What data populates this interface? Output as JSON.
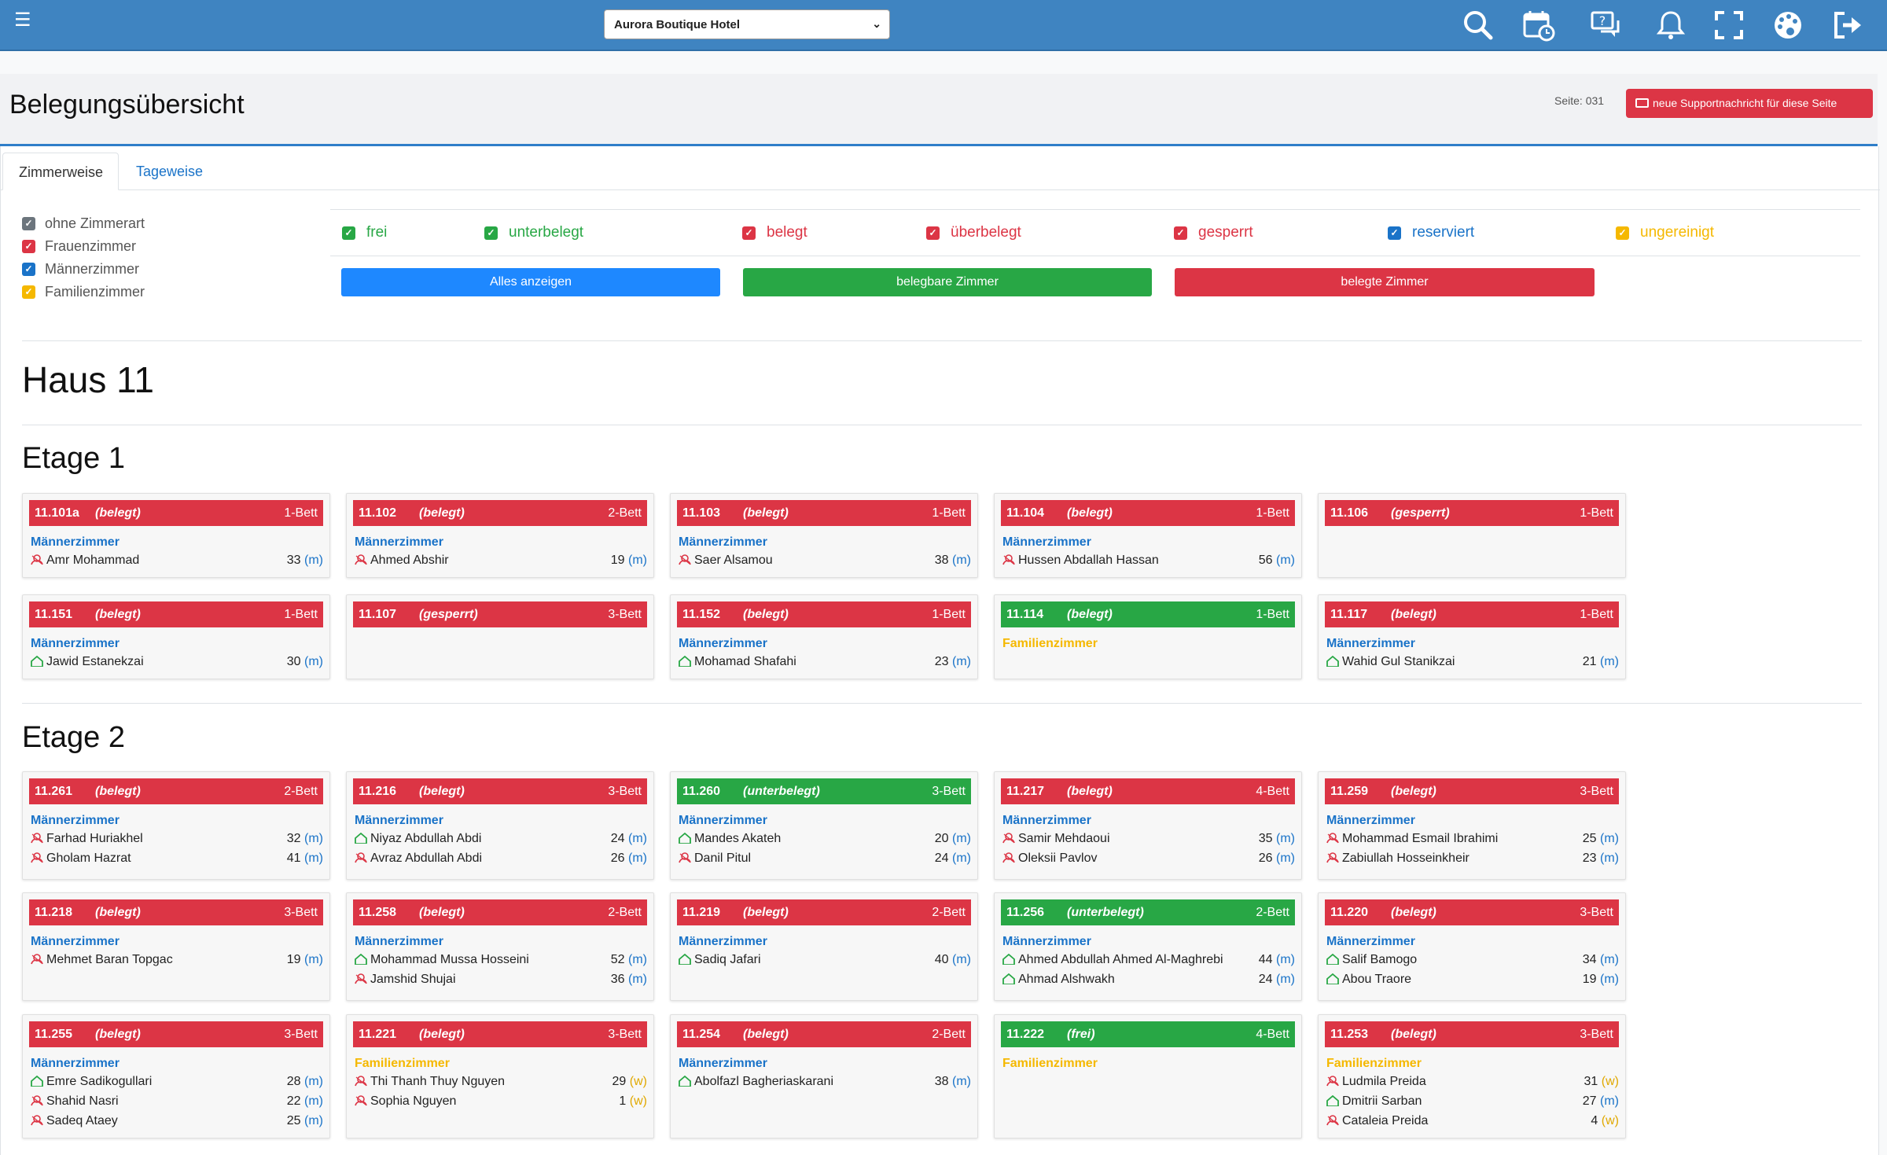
{
  "hotel": "Aurora Boutique Hotel",
  "title": "Belegungsübersicht",
  "seite": "Seite: 031",
  "support_label": "neue Supportnachricht für diese Seite",
  "tabs": [
    "Zimmerweise",
    "Tageweise"
  ],
  "room_types": [
    {
      "label": "ohne Zimmerart",
      "color": "#6c757d"
    },
    {
      "label": "Frauenzimmer",
      "color": "#dc3545"
    },
    {
      "label": "Männerzimmer",
      "color": "#1a73c8"
    },
    {
      "label": "Familienzimmer",
      "color": "#f5b800"
    }
  ],
  "filters": [
    {
      "label": "frei",
      "color": "#28a745"
    },
    {
      "label": "unterbelegt",
      "color": "#28a745"
    },
    {
      "label": "belegt",
      "color": "#dc3545"
    },
    {
      "label": "überbelegt",
      "color": "#dc3545"
    },
    {
      "label": "gesperrt",
      "color": "#dc3545"
    },
    {
      "label": "reserviert",
      "color": "#1a73c8"
    },
    {
      "label": "ungereinigt",
      "color": "#f5b800"
    }
  ],
  "buttons": {
    "all": "Alles anzeigen",
    "bookable": "belegbare Zimmer",
    "occupied": "belegte Zimmer"
  },
  "haus": "Haus 11",
  "etage1": "Etage 1",
  "etage2": "Etage 2",
  "colors": {
    "red": "#dc3545",
    "green": "#28a745",
    "blue": "#1a73c8",
    "yellow": "#f5b800",
    "topbar": "#3f84c1"
  },
  "cards": [
    {
      "num": "11.101a",
      "status": "(belegt)",
      "bed": "1-Bett",
      "head": "red",
      "type": "Männerzimmer",
      "tcolor": "#1a73c8",
      "occ": [
        {
          "name": "Amr Mohammad",
          "age": "33",
          "g": "m",
          "icon": "person"
        }
      ]
    },
    {
      "num": "11.102",
      "status": "(belegt)",
      "bed": "2-Bett",
      "head": "red",
      "type": "Männerzimmer",
      "tcolor": "#1a73c8",
      "occ": [
        {
          "name": "Ahmed Abshir",
          "age": "19",
          "g": "m",
          "icon": "person"
        }
      ]
    },
    {
      "num": "11.103",
      "status": "(belegt)",
      "bed": "1-Bett",
      "head": "red",
      "type": "Männerzimmer",
      "tcolor": "#1a73c8",
      "occ": [
        {
          "name": "Saer Alsamou",
          "age": "38",
          "g": "m",
          "icon": "person"
        }
      ]
    },
    {
      "num": "11.104",
      "status": "(belegt)",
      "bed": "1-Bett",
      "head": "red",
      "type": "Männerzimmer",
      "tcolor": "#1a73c8",
      "occ": [
        {
          "name": "Hussen Abdallah Hassan",
          "age": "56",
          "g": "m",
          "icon": "person"
        }
      ]
    },
    {
      "num": "11.106",
      "status": "(gesperrt)",
      "bed": "1-Bett",
      "head": "red",
      "type": "",
      "tcolor": "#1a73c8",
      "occ": []
    },
    {
      "num": "11.151",
      "status": "(belegt)",
      "bed": "1-Bett",
      "head": "red",
      "type": "Männerzimmer",
      "tcolor": "#1a73c8",
      "occ": [
        {
          "name": "Jawid Estanekzai",
          "age": "30",
          "g": "m",
          "icon": "house"
        }
      ]
    },
    {
      "num": "11.107",
      "status": "(gesperrt)",
      "bed": "3-Bett",
      "head": "red",
      "type": "",
      "tcolor": "#1a73c8",
      "occ": []
    },
    {
      "num": "11.152",
      "status": "(belegt)",
      "bed": "1-Bett",
      "head": "red",
      "type": "Männerzimmer",
      "tcolor": "#1a73c8",
      "occ": [
        {
          "name": "Mohamad Shafahi",
          "age": "23",
          "g": "m",
          "icon": "house"
        }
      ]
    },
    {
      "num": "11.114",
      "status": "(belegt)",
      "bed": "1-Bett",
      "head": "green",
      "type": "Familienzimmer",
      "tcolor": "#f5b800",
      "occ": []
    },
    {
      "num": "11.117",
      "status": "(belegt)",
      "bed": "1-Bett",
      "head": "red",
      "type": "Männerzimmer",
      "tcolor": "#1a73c8",
      "occ": [
        {
          "name": "Wahid Gul Stanikzai",
          "age": "21",
          "g": "m",
          "icon": "house"
        }
      ]
    },
    {
      "num": "11.261",
      "status": "(belegt)",
      "bed": "2-Bett",
      "head": "red",
      "type": "Männerzimmer",
      "tcolor": "#1a73c8",
      "occ": [
        {
          "name": "Farhad Huriakhel",
          "age": "32",
          "g": "m",
          "icon": "person"
        },
        {
          "name": "Gholam Hazrat",
          "age": "41",
          "g": "m",
          "icon": "person"
        }
      ]
    },
    {
      "num": "11.216",
      "status": "(belegt)",
      "bed": "3-Bett",
      "head": "red",
      "type": "Männerzimmer",
      "tcolor": "#1a73c8",
      "occ": [
        {
          "name": "Niyaz Abdullah Abdi",
          "age": "24",
          "g": "m",
          "icon": "house"
        },
        {
          "name": "Avraz Abdullah Abdi",
          "age": "26",
          "g": "m",
          "icon": "person"
        }
      ]
    },
    {
      "num": "11.260",
      "status": "(unterbelegt)",
      "bed": "3-Bett",
      "head": "green",
      "type": "Männerzimmer",
      "tcolor": "#1a73c8",
      "occ": [
        {
          "name": "Mandes Akateh",
          "age": "20",
          "g": "m",
          "icon": "house"
        },
        {
          "name": "Danil Pitul",
          "age": "24",
          "g": "m",
          "icon": "person"
        }
      ]
    },
    {
      "num": "11.217",
      "status": "(belegt)",
      "bed": "4-Bett",
      "head": "red",
      "type": "Männerzimmer",
      "tcolor": "#1a73c8",
      "occ": [
        {
          "name": "Samir Mehdaoui",
          "age": "35",
          "g": "m",
          "icon": "person"
        },
        {
          "name": "Oleksii Pavlov",
          "age": "26",
          "g": "m",
          "icon": "person"
        }
      ]
    },
    {
      "num": "11.259",
      "status": "(belegt)",
      "bed": "3-Bett",
      "head": "red",
      "type": "Männerzimmer",
      "tcolor": "#1a73c8",
      "occ": [
        {
          "name": "Mohammad Esmail Ibrahimi",
          "age": "25",
          "g": "m",
          "icon": "person"
        },
        {
          "name": "Zabiullah Hosseinkheir",
          "age": "23",
          "g": "m",
          "icon": "person"
        }
      ]
    },
    {
      "num": "11.218",
      "status": "(belegt)",
      "bed": "3-Bett",
      "head": "red",
      "type": "Männerzimmer",
      "tcolor": "#1a73c8",
      "occ": [
        {
          "name": "Mehmet Baran Topgac",
          "age": "19",
          "g": "m",
          "icon": "person"
        }
      ]
    },
    {
      "num": "11.258",
      "status": "(belegt)",
      "bed": "2-Bett",
      "head": "red",
      "type": "Männerzimmer",
      "tcolor": "#1a73c8",
      "occ": [
        {
          "name": "Mohammad Mussa Hosseini",
          "age": "52",
          "g": "m",
          "icon": "house"
        },
        {
          "name": "Jamshid Shujai",
          "age": "36",
          "g": "m",
          "icon": "person"
        }
      ]
    },
    {
      "num": "11.219",
      "status": "(belegt)",
      "bed": "2-Bett",
      "head": "red",
      "type": "Männerzimmer",
      "tcolor": "#1a73c8",
      "occ": [
        {
          "name": "Sadiq Jafari",
          "age": "40",
          "g": "m",
          "icon": "house"
        }
      ]
    },
    {
      "num": "11.256",
      "status": "(unterbelegt)",
      "bed": "2-Bett",
      "head": "green",
      "type": "Männerzimmer",
      "tcolor": "#1a73c8",
      "occ": [
        {
          "name": "Ahmed Abdullah Ahmed Al-Maghrebi",
          "age": "44",
          "g": "m",
          "icon": "house"
        },
        {
          "name": "Ahmad Alshwakh",
          "age": "24",
          "g": "m",
          "icon": "house"
        }
      ]
    },
    {
      "num": "11.220",
      "status": "(belegt)",
      "bed": "3-Bett",
      "head": "red",
      "type": "Männerzimmer",
      "tcolor": "#1a73c8",
      "occ": [
        {
          "name": "Salif Bamogo",
          "age": "34",
          "g": "m",
          "icon": "house"
        },
        {
          "name": "Abou Traore",
          "age": "19",
          "g": "m",
          "icon": "house"
        }
      ]
    },
    {
      "num": "11.255",
      "status": "(belegt)",
      "bed": "3-Bett",
      "head": "red",
      "type": "Männerzimmer",
      "tcolor": "#1a73c8",
      "occ": [
        {
          "name": "Emre Sadikogullari",
          "age": "28",
          "g": "m",
          "icon": "house"
        },
        {
          "name": "Shahid Nasri",
          "age": "22",
          "g": "m",
          "icon": "person"
        },
        {
          "name": "Sadeq Ataey",
          "age": "25",
          "g": "m",
          "icon": "person"
        }
      ]
    },
    {
      "num": "11.221",
      "status": "(belegt)",
      "bed": "3-Bett",
      "head": "red",
      "type": "Familienzimmer",
      "tcolor": "#f5b800",
      "occ": [
        {
          "name": "Thi Thanh Thuy Nguyen",
          "age": "29",
          "g": "w",
          "icon": "person"
        },
        {
          "name": "Sophia Nguyen",
          "age": "1",
          "g": "w",
          "icon": "person"
        }
      ]
    },
    {
      "num": "11.254",
      "status": "(belegt)",
      "bed": "2-Bett",
      "head": "red",
      "type": "Männerzimmer",
      "tcolor": "#1a73c8",
      "occ": [
        {
          "name": "Abolfazl Bagheriaskarani",
          "age": "38",
          "g": "m",
          "icon": "house"
        }
      ]
    },
    {
      "num": "11.222",
      "status": "(frei)",
      "bed": "4-Bett",
      "head": "green",
      "type": "Familienzimmer",
      "tcolor": "#f5b800",
      "occ": []
    },
    {
      "num": "11.253",
      "status": "(belegt)",
      "bed": "3-Bett",
      "head": "red",
      "type": "Familienzimmer",
      "tcolor": "#f5b800",
      "occ": [
        {
          "name": "Ludmila Preida",
          "age": "31",
          "g": "w",
          "icon": "person"
        },
        {
          "name": "Dmitrii Sarban",
          "age": "27",
          "g": "m",
          "icon": "house"
        },
        {
          "name": "Cataleia Preida",
          "age": "4",
          "g": "w",
          "icon": "person"
        }
      ]
    }
  ]
}
